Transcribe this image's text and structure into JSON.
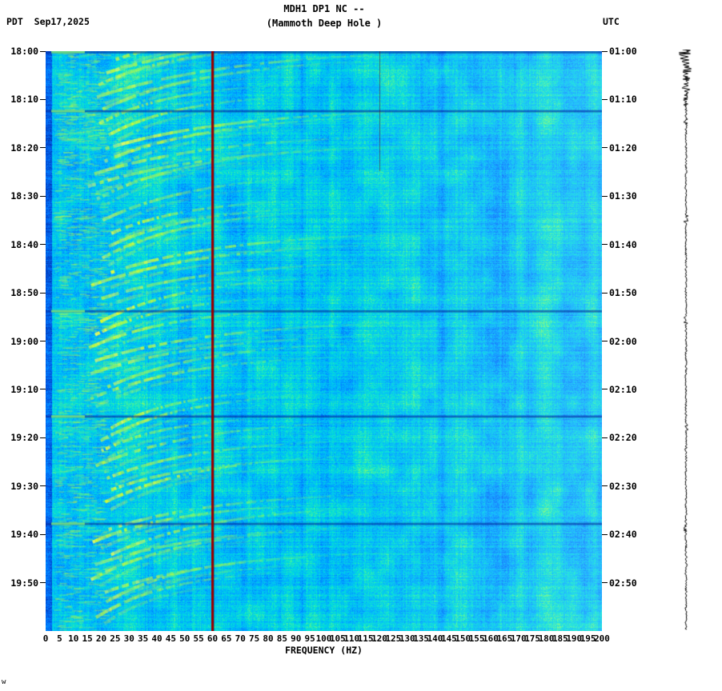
{
  "header": {
    "title_line1": "MDH1 DP1 NC --",
    "title_line2": "(Mammoth Deep Hole )",
    "tz_left": "PDT",
    "date": "Sep17,2025",
    "tz_right": "UTC"
  },
  "x_axis": {
    "label": "FREQUENCY (HZ)",
    "ticks": [
      "0",
      "5",
      "10",
      "15",
      "20",
      "25",
      "30",
      "35",
      "40",
      "45",
      "50",
      "55",
      "60",
      "65",
      "70",
      "75",
      "80",
      "85",
      "90",
      "95",
      "100",
      "105",
      "110",
      "115",
      "120",
      "125",
      "130",
      "135",
      "140",
      "145",
      "150",
      "155",
      "160",
      "165",
      "170",
      "175",
      "180",
      "185",
      "190",
      "195",
      "200"
    ]
  },
  "left_axis_times": [
    "18:00",
    "18:10",
    "18:20",
    "18:30",
    "18:40",
    "18:50",
    "19:00",
    "19:10",
    "19:20",
    "19:30",
    "19:40",
    "19:50"
  ],
  "right_axis_times": [
    "01:00",
    "01:10",
    "01:20",
    "01:30",
    "01:40",
    "01:50",
    "02:00",
    "02:10",
    "02:20",
    "02:30",
    "02:40",
    "02:50"
  ],
  "footer_glyph": "w",
  "chart_data": {
    "type": "heatmap",
    "title": "MDH1 DP1 NC -- (Mammoth Deep Hole ) seismic spectrogram",
    "xlabel": "FREQUENCY (HZ)",
    "x_range_hz": [
      0,
      200
    ],
    "x_tick_step_hz": 5,
    "time_axis_left_pdt": {
      "start": "18:00",
      "end": "20:00",
      "tick_minutes": 10
    },
    "time_axis_right_utc": {
      "start": "01:00",
      "end": "03:00",
      "tick_minutes": 10
    },
    "background_style": "mottled cyan-blue broadband noise, paler toward high frequencies",
    "colormap": [
      [
        0,
        "#001a66"
      ],
      [
        0.2,
        "#0044cc"
      ],
      [
        0.35,
        "#0077ff"
      ],
      [
        0.5,
        "#00b4ff"
      ],
      [
        0.62,
        "#00e0d8"
      ],
      [
        0.72,
        "#44f0a0"
      ],
      [
        0.82,
        "#aaff44"
      ],
      [
        0.92,
        "#e8ff22"
      ],
      [
        1,
        "#ffff66"
      ]
    ],
    "powerline_hz": 60,
    "powerline_color": "#990000",
    "secondary_line_hz": 120,
    "dark_row_minutes": [
      0.2,
      12.4,
      53.8,
      75.6,
      97.8
    ],
    "tremor_clusters": [
      {
        "start_min": 2,
        "count": 5,
        "spacing_min": 2.5,
        "extent_hz": 110,
        "rise_min": 10
      },
      {
        "start_min": 15,
        "count": 7,
        "spacing_min": 2.6,
        "extent_hz": 100,
        "rise_min": 10
      },
      {
        "start_min": 35,
        "count": 7,
        "spacing_min": 2.7,
        "extent_hz": 95,
        "rise_min": 9
      },
      {
        "start_min": 56,
        "count": 7,
        "spacing_min": 2.7,
        "extent_hz": 100,
        "rise_min": 10
      },
      {
        "start_min": 78,
        "count": 7,
        "spacing_min": 2.6,
        "extent_hz": 95,
        "rise_min": 9
      },
      {
        "start_min": 99,
        "count": 8,
        "spacing_min": 2.6,
        "extent_hz": 100,
        "rise_min": 10
      }
    ],
    "trace": {
      "present": true,
      "description": "vertical seismogram amplitude trace at right edge, large excursions near 01:00"
    }
  }
}
